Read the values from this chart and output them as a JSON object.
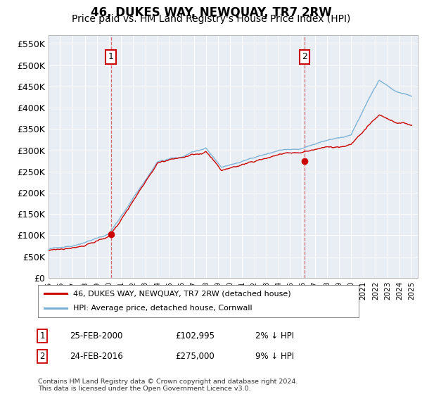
{
  "title": "46, DUKES WAY, NEWQUAY, TR7 2RW",
  "subtitle": "Price paid vs. HM Land Registry's House Price Index (HPI)",
  "ylim": [
    0,
    570000
  ],
  "yticks": [
    0,
    50000,
    100000,
    150000,
    200000,
    250000,
    300000,
    350000,
    400000,
    450000,
    500000,
    550000
  ],
  "ytick_labels": [
    "£0",
    "£50K",
    "£100K",
    "£150K",
    "£200K",
    "£250K",
    "£300K",
    "£350K",
    "£400K",
    "£450K",
    "£500K",
    "£550K"
  ],
  "x_start_year": 1995,
  "x_end_year": 2025,
  "hpi_color": "#7ab0d4",
  "price_color": "#cc0000",
  "marker_color": "#cc0000",
  "sale1_year": 2000.15,
  "sale1_price": 102995,
  "sale2_year": 2016.15,
  "sale2_price": 275000,
  "vline_color": "#cc3333",
  "legend_label1": "46, DUKES WAY, NEWQUAY, TR7 2RW (detached house)",
  "legend_label2": "HPI: Average price, detached house, Cornwall",
  "table_row1": [
    "1",
    "25-FEB-2000",
    "£102,995",
    "2% ↓ HPI"
  ],
  "table_row2": [
    "2",
    "24-FEB-2016",
    "£275,000",
    "9% ↓ HPI"
  ],
  "footer": "Contains HM Land Registry data © Crown copyright and database right 2024.\nThis data is licensed under the Open Government Licence v3.0.",
  "bg_color": "#ffffff",
  "plot_bg_color": "#e8eef4",
  "grid_color": "#ffffff",
  "title_fontsize": 12,
  "subtitle_fontsize": 10,
  "axis_fontsize": 9
}
